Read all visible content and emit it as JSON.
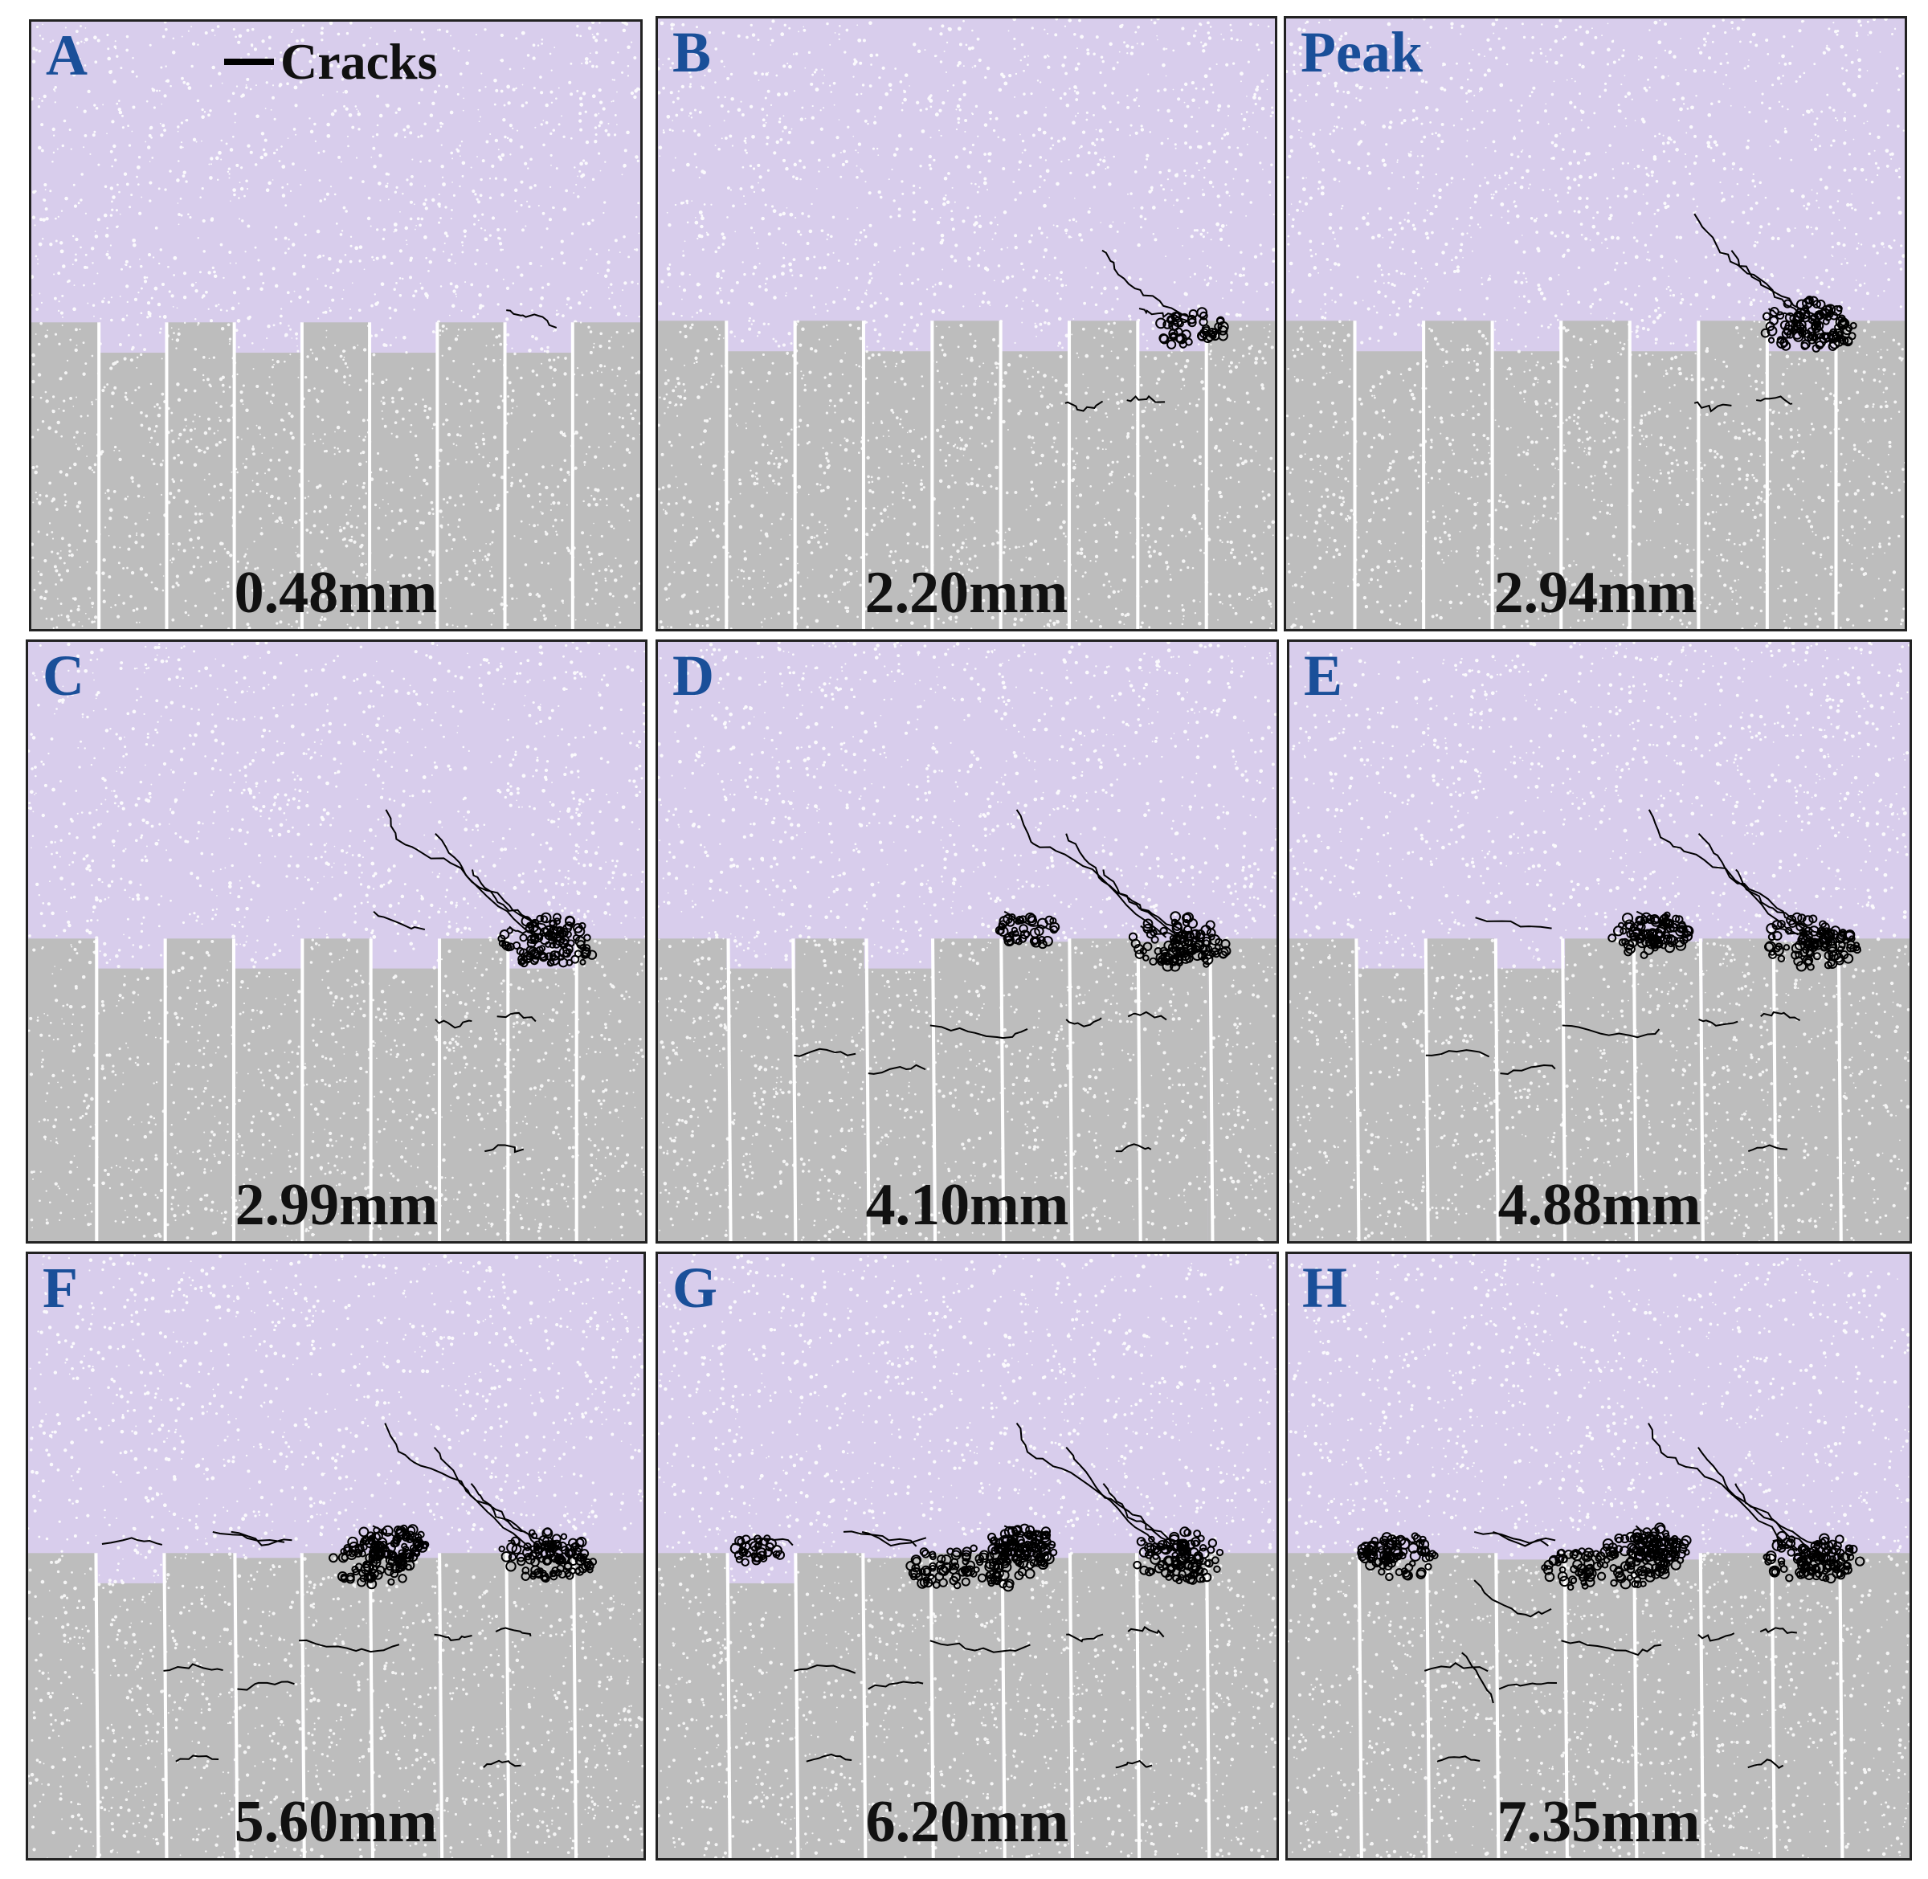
{
  "legend": {
    "crack_label": "Cracks"
  },
  "colors": {
    "upper_block": "#d8cdec",
    "lower_block": "#bdbdbd",
    "speckle": "#ffffff",
    "gap": "#ffffff",
    "crack": "#000000",
    "label": "#1a4f99",
    "frame": "#222222",
    "displacement_text": "#111111"
  },
  "panels": [
    {
      "label": "A",
      "displacement": "0.48mm",
      "damage_stage": 0
    },
    {
      "label": "B",
      "displacement": "2.20mm",
      "damage_stage": 1
    },
    {
      "label": "Peak",
      "displacement": "2.94mm",
      "damage_stage": 2
    },
    {
      "label": "C",
      "displacement": "2.99mm",
      "damage_stage": 3
    },
    {
      "label": "D",
      "displacement": "4.10mm",
      "damage_stage": 4
    },
    {
      "label": "E",
      "displacement": "4.88mm",
      "damage_stage": 5
    },
    {
      "label": "F",
      "displacement": "5.60mm",
      "damage_stage": 6
    },
    {
      "label": "G",
      "displacement": "6.20mm",
      "damage_stage": 7
    },
    {
      "label": "H",
      "displacement": "7.35mm",
      "damage_stage": 8
    }
  ]
}
